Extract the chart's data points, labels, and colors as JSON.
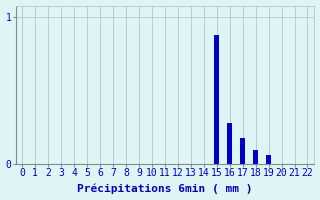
{
  "categories": [
    0,
    1,
    2,
    3,
    4,
    5,
    6,
    7,
    8,
    9,
    10,
    11,
    12,
    13,
    14,
    15,
    16,
    17,
    18,
    19,
    20,
    21,
    22
  ],
  "values": [
    0,
    0,
    0,
    0,
    0,
    0,
    0,
    0,
    0,
    0,
    0,
    0,
    0,
    0,
    0,
    0.88,
    0.28,
    0.18,
    0.1,
    0.06,
    0,
    0,
    0
  ],
  "bar_color": "#0000cc",
  "background_color": "#dff4f4",
  "grid_color": "#afc8cc",
  "xlabel": "Précipitations 6min ( mm )",
  "yticks": [
    0,
    1
  ],
  "ylim": [
    0,
    1.08
  ],
  "xlim": [
    -0.5,
    22.5
  ],
  "xlabel_fontsize": 8,
  "tick_fontsize": 7,
  "bar_width": 0.35
}
